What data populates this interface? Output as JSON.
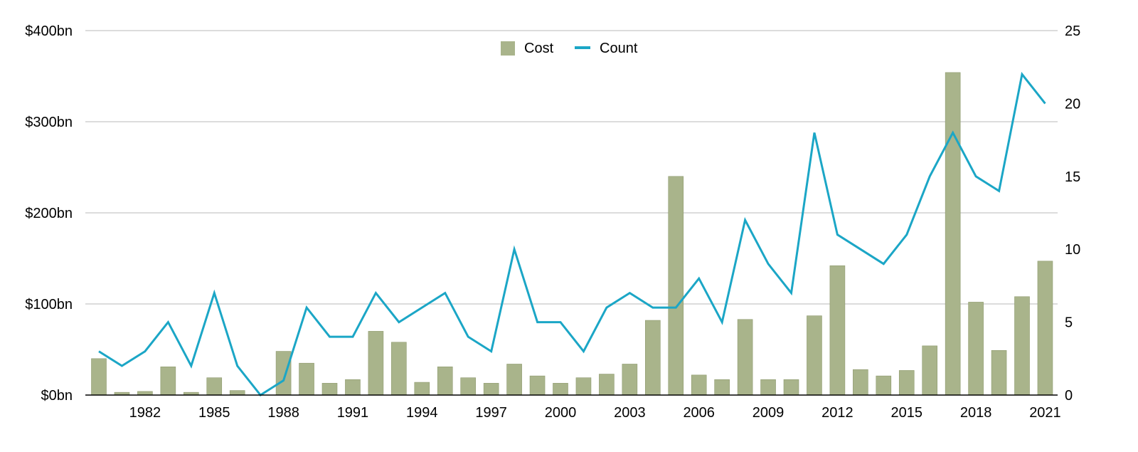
{
  "chart_data": {
    "type": "bar",
    "title": "",
    "xlabel": "",
    "ylabel": "",
    "years": [
      1980,
      1981,
      1982,
      1983,
      1984,
      1985,
      1986,
      1987,
      1988,
      1989,
      1990,
      1991,
      1992,
      1993,
      1994,
      1995,
      1996,
      1997,
      1998,
      1999,
      2000,
      2001,
      2002,
      2003,
      2004,
      2005,
      2006,
      2007,
      2008,
      2009,
      2010,
      2011,
      2012,
      2013,
      2014,
      2015,
      2016,
      2017,
      2018,
      2019,
      2020,
      2021
    ],
    "x_tick_labels": [
      "1982",
      "1985",
      "1988",
      "1991",
      "1994",
      "1997",
      "2000",
      "2003",
      "2006",
      "2009",
      "2012",
      "2015",
      "2018",
      "2021"
    ],
    "y_left_ticks": [
      "$0bn",
      "$100bn",
      "$200bn",
      "$300bn",
      "$400bn"
    ],
    "y_left_lim": [
      0,
      400
    ],
    "y_right_ticks": [
      "0",
      "5",
      "10",
      "15",
      "20",
      "25"
    ],
    "y_right_lim": [
      0,
      25
    ],
    "grid": true,
    "legend_position": "top-center",
    "series": [
      {
        "name": "Cost",
        "type": "bar",
        "axis": "left",
        "color": "#a9b48b",
        "values": [
          40,
          3,
          4,
          31,
          3,
          19,
          5,
          0,
          48,
          35,
          13,
          17,
          70,
          58,
          14,
          31,
          19,
          13,
          34,
          21,
          13,
          19,
          23,
          34,
          82,
          240,
          22,
          17,
          83,
          17,
          17,
          87,
          142,
          28,
          21,
          27,
          54,
          354,
          102,
          49,
          108,
          147
        ]
      },
      {
        "name": "Count",
        "type": "line",
        "axis": "right",
        "color": "#1ba6c6",
        "values": [
          3,
          2,
          3,
          5,
          2,
          7,
          2,
          0,
          1,
          6,
          4,
          4,
          7,
          5,
          6,
          7,
          4,
          3,
          10,
          5,
          5,
          3,
          6,
          7,
          6,
          6,
          8,
          5,
          12,
          9,
          7,
          18,
          11,
          10,
          9,
          11,
          15,
          18,
          15,
          14,
          22,
          20
        ]
      }
    ]
  }
}
